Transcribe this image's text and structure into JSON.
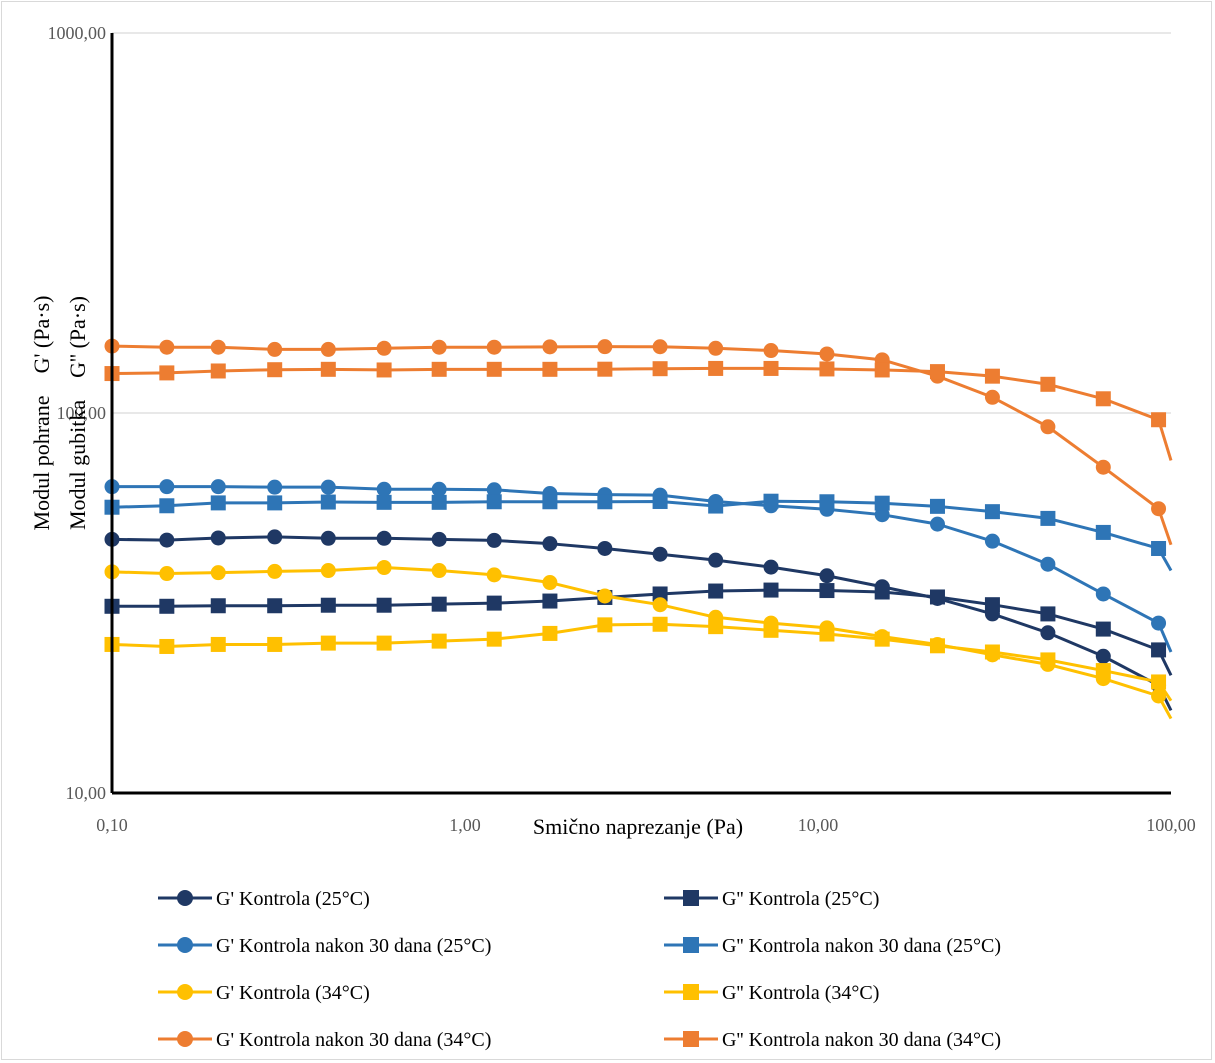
{
  "chart_data": {
    "type": "line",
    "x_scale": "log",
    "y_scale": "log",
    "xlim": [
      0.1,
      100
    ],
    "ylim": [
      10,
      1000
    ],
    "x_tick_labels": [
      "0,10",
      "1,00",
      "10,00",
      "100,00"
    ],
    "y_tick_labels": [
      "10,00",
      "100,00",
      "1000,00"
    ],
    "xlabel": "Smično naprezanje (Pa)",
    "ylabel_lines": [
      "Modul pohrane    G' (Pa·s)",
      "Modul gubitka    G'' (Pa·s)"
    ],
    "grid": "horizontal",
    "legend_position": "bottom",
    "x": [
      0.1,
      0.143,
      0.2,
      0.289,
      0.41,
      0.59,
      0.845,
      1.21,
      1.74,
      2.49,
      3.57,
      5.13,
      7.36,
      10.6,
      15.2,
      21.8,
      31.2,
      44.8,
      64.3,
      92.2,
      100
    ],
    "series": [
      {
        "name": "G' Kontrola (25°C)",
        "color": "#1f3864",
        "marker": "circle",
        "values": [
          46.5,
          46.3,
          46.9,
          47.2,
          46.8,
          46.8,
          46.5,
          46.2,
          45.3,
          44.0,
          42.5,
          41.0,
          39.3,
          37.3,
          34.9,
          32.5,
          29.6,
          26.4,
          22.9,
          19.2,
          16.5
        ]
      },
      {
        "name": "G'' Kontrola (25°C)",
        "color": "#1f3864",
        "marker": "square",
        "values": [
          31.0,
          31.0,
          31.1,
          31.1,
          31.2,
          31.2,
          31.4,
          31.6,
          32.0,
          32.7,
          33.4,
          34.0,
          34.2,
          34.1,
          33.8,
          32.8,
          31.3,
          29.6,
          27.0,
          23.8,
          20.4
        ]
      },
      {
        "name": "G' Kontrola nakon 30 dana (25°C)",
        "color": "#2e75b6",
        "marker": "circle",
        "values": [
          64.0,
          64.0,
          64.0,
          63.8,
          63.8,
          63.0,
          63.0,
          62.8,
          61.4,
          61.0,
          60.8,
          58.5,
          57.0,
          55.8,
          54.0,
          51.0,
          46.0,
          40.0,
          33.4,
          28.0,
          23.5
        ]
      },
      {
        "name": "G'' Kontrola nakon 30 dana (25°C)",
        "color": "#2e75b6",
        "marker": "square",
        "values": [
          56.5,
          57.0,
          58.0,
          58.0,
          58.3,
          58.2,
          58.2,
          58.4,
          58.4,
          58.4,
          58.5,
          56.9,
          58.6,
          58.4,
          57.9,
          56.8,
          55.0,
          52.8,
          48.5,
          44.0,
          38.5
        ]
      },
      {
        "name": "G' Kontrola (34°C)",
        "color": "#ffc000",
        "marker": "circle",
        "values": [
          38.2,
          37.8,
          38.0,
          38.3,
          38.5,
          39.2,
          38.5,
          37.5,
          35.8,
          33.0,
          31.3,
          29.0,
          28.0,
          27.2,
          25.8,
          24.6,
          23.1,
          21.8,
          20.0,
          18.0,
          15.7
        ]
      },
      {
        "name": "G'' Kontrola (34°C)",
        "color": "#ffc000",
        "marker": "square",
        "values": [
          24.6,
          24.3,
          24.6,
          24.6,
          24.8,
          24.8,
          25.1,
          25.4,
          26.3,
          27.7,
          27.8,
          27.4,
          26.8,
          26.2,
          25.4,
          24.4,
          23.5,
          22.4,
          21.0,
          19.6,
          17.5
        ]
      },
      {
        "name": "G' Kontrola nakon 30 dana (34°C)",
        "color": "#ed7d31",
        "marker": "circle",
        "values": [
          150.0,
          149.0,
          149.0,
          147.0,
          147.0,
          148.0,
          149.0,
          149.0,
          149.3,
          149.5,
          149.4,
          148.0,
          146.0,
          143.0,
          138.0,
          125.0,
          110.0,
          92.0,
          72.0,
          56.0,
          45.0
        ]
      },
      {
        "name": "G'' Kontrola nakon 30 dana (34°C)",
        "color": "#ed7d31",
        "marker": "square",
        "values": [
          127.0,
          127.5,
          129.0,
          130.0,
          130.3,
          129.8,
          130.3,
          130.3,
          130.3,
          130.4,
          130.8,
          131.0,
          131.0,
          130.6,
          129.8,
          128.5,
          125.0,
          119.0,
          109.0,
          96.0,
          75.0
        ]
      }
    ]
  }
}
